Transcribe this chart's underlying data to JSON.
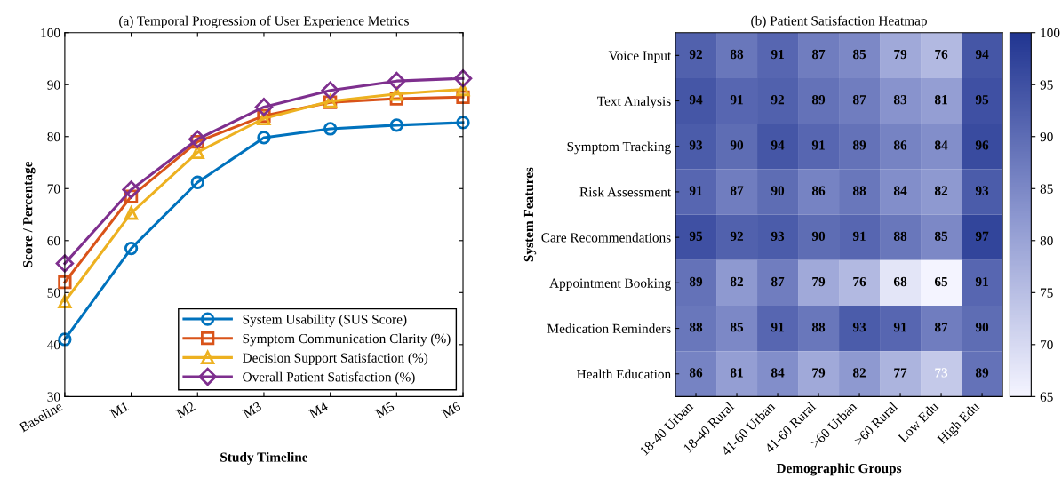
{
  "chart_data": [
    {
      "type": "line",
      "title": "(a) Temporal Progression of User Experience Metrics",
      "xlabel": "Study Timeline",
      "ylabel": "Score / Percentage",
      "categories": [
        "Baseline",
        "M1",
        "M2",
        "M3",
        "M4",
        "M5",
        "M6"
      ],
      "series": [
        {
          "name": "System Usability (SUS Score)",
          "color": "#0072bd",
          "marker": "circle",
          "values": [
            41,
            58.5,
            71.2,
            79.8,
            81.5,
            82.2,
            82.7
          ]
        },
        {
          "name": "Symptom Communication Clarity (%)",
          "color": "#d95319",
          "marker": "square",
          "values": [
            52,
            68.5,
            79,
            84,
            86.6,
            87.3,
            87.6
          ]
        },
        {
          "name": "Decision Support Satisfaction (%)",
          "color": "#edb120",
          "marker": "triangle",
          "values": [
            48.3,
            65.3,
            77,
            83.5,
            86.8,
            88.2,
            89.1
          ]
        },
        {
          "name": "Overall Patient Satisfaction (%)",
          "color": "#7e2f8e",
          "marker": "diamond",
          "values": [
            55.6,
            69.8,
            79.5,
            85.7,
            88.9,
            90.7,
            91.2
          ]
        }
      ],
      "ylim": [
        30,
        100
      ],
      "yticks": [
        30,
        40,
        50,
        60,
        70,
        80,
        90,
        100
      ],
      "legend": "bottom right",
      "grid": false,
      "line_style": "solid"
    },
    {
      "type": "heatmap",
      "title": "(b) Patient Satisfaction Heatmap",
      "xlabel": "Demographic Groups",
      "ylabel": "System Features",
      "categories": [
        "18-40 Urban",
        "18-40 Rural",
        "41-60 Urban",
        "41-60 Rural",
        ">60 Urban",
        ">60 Rural",
        "Low Edu",
        "High Edu"
      ],
      "y_categories": [
        "Voice Input",
        "Text Analysis",
        "Symptom Tracking",
        "Risk Assessment",
        "Care Recommendations",
        "Appointment Booking",
        "Medication Reminders",
        "Health Education"
      ],
      "cells": [
        [
          92,
          88,
          91,
          87,
          85,
          79,
          76,
          94
        ],
        [
          94,
          91,
          92,
          89,
          87,
          83,
          81,
          95
        ],
        [
          93,
          90,
          94,
          91,
          89,
          86,
          84,
          96
        ],
        [
          91,
          87,
          90,
          86,
          88,
          84,
          82,
          93
        ],
        [
          95,
          92,
          93,
          90,
          91,
          88,
          85,
          97
        ],
        [
          89,
          82,
          87,
          79,
          76,
          68,
          65,
          91
        ],
        [
          88,
          85,
          91,
          88,
          93,
          91,
          87,
          90
        ],
        [
          86,
          81,
          84,
          79,
          82,
          77,
          73,
          89
        ]
      ],
      "clim": [
        65,
        100
      ],
      "cticks": [
        65,
        70,
        75,
        80,
        85,
        90,
        95,
        100
      ],
      "data_labels": true
    }
  ]
}
